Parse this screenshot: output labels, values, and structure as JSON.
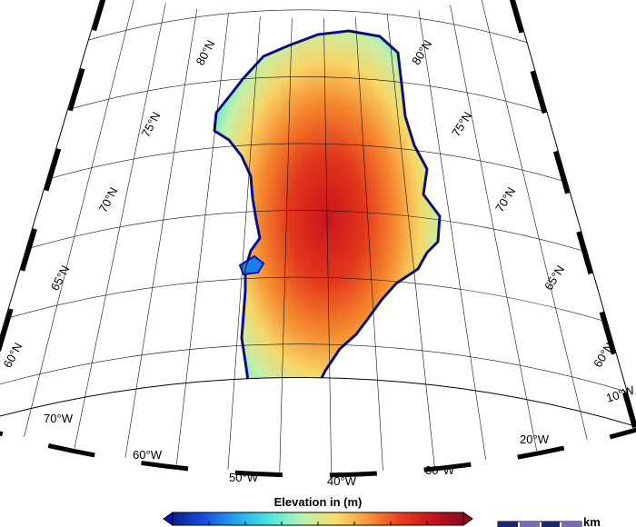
{
  "map": {
    "region": "Greenland",
    "projection": "conic"
  },
  "latitude_labels": [
    "80°N",
    "75°N",
    "70°N",
    "65°N",
    "60°N"
  ],
  "longitude_labels": [
    "70°W",
    "60°W",
    "50°W",
    "40°W",
    "30°W",
    "20°W",
    "10°W"
  ],
  "colorbar": {
    "title": "Elevation in (m)",
    "colormap": "jet",
    "gradient_colors": [
      "#08208c",
      "#1a4fe0",
      "#22a8f0",
      "#4ee6e0",
      "#b6f2b2",
      "#f6e070",
      "#f79a3a",
      "#e8421e",
      "#c9141c",
      "#8c0c1e"
    ],
    "sea_color": "#0a12b8"
  },
  "scale_bar": {
    "unit": "km"
  }
}
